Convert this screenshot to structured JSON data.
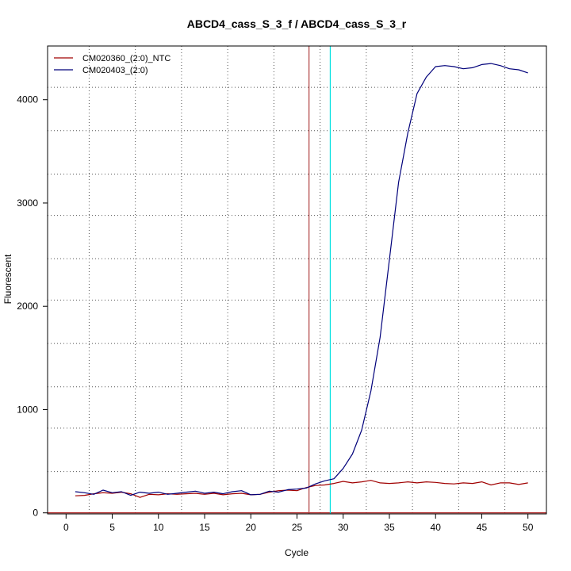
{
  "chart_data": {
    "type": "line",
    "title": "ABCD4_cass_S_3_f / ABCD4_cass_S_3_r",
    "xlabel": "Cycle",
    "ylabel": "Fluorescent",
    "xlim": [
      -2,
      52
    ],
    "ylim": [
      -10,
      4520
    ],
    "x_ticks": [
      0,
      5,
      10,
      15,
      20,
      25,
      30,
      35,
      40,
      45,
      50
    ],
    "y_ticks": [
      0,
      1000,
      2000,
      3000,
      4000
    ],
    "grid": true,
    "grid_x": [
      2.5,
      7.5,
      12.5,
      17.5,
      22.5,
      27.5,
      32.5,
      37.5,
      42.5,
      47.5
    ],
    "grid_y": [
      400,
      820,
      1220,
      1640,
      2060,
      2460,
      2880,
      3280,
      3700,
      4120
    ],
    "legend_position": "top-left",
    "baseline": {
      "y": 0,
      "color": "#a00000"
    },
    "vlines": [
      {
        "x": 26.3,
        "color": "#b04040"
      },
      {
        "x": 28.6,
        "color": "#00e0e0"
      }
    ],
    "x": [
      1,
      2,
      3,
      4,
      5,
      6,
      7,
      8,
      9,
      10,
      11,
      12,
      13,
      14,
      15,
      16,
      17,
      18,
      19,
      20,
      21,
      22,
      23,
      24,
      25,
      26,
      27,
      28,
      29,
      30,
      31,
      32,
      33,
      34,
      35,
      36,
      37,
      38,
      39,
      40,
      41,
      42,
      43,
      44,
      45,
      46,
      47,
      48,
      49,
      50
    ],
    "series": [
      {
        "name": "CM020360_(2:0)_NTC",
        "color": "#a00000",
        "values": [
          165,
          170,
          185,
          195,
          190,
          200,
          185,
          150,
          180,
          175,
          185,
          180,
          185,
          190,
          180,
          190,
          175,
          185,
          190,
          175,
          180,
          200,
          215,
          220,
          215,
          245,
          265,
          270,
          285,
          305,
          290,
          300,
          315,
          290,
          285,
          290,
          300,
          290,
          300,
          295,
          285,
          280,
          290,
          285,
          300,
          270,
          290,
          290,
          275,
          290
        ]
      },
      {
        "name": "CM020403_(2:0)",
        "color": "#00007a",
        "values": [
          205,
          195,
          180,
          220,
          195,
          205,
          170,
          200,
          190,
          200,
          180,
          190,
          200,
          210,
          190,
          200,
          185,
          205,
          215,
          175,
          180,
          210,
          200,
          225,
          230,
          240,
          280,
          310,
          330,
          430,
          570,
          800,
          1180,
          1700,
          2450,
          3200,
          3680,
          4060,
          4220,
          4320,
          4330,
          4320,
          4300,
          4310,
          4340,
          4350,
          4330,
          4300,
          4290,
          4260
        ]
      }
    ]
  }
}
